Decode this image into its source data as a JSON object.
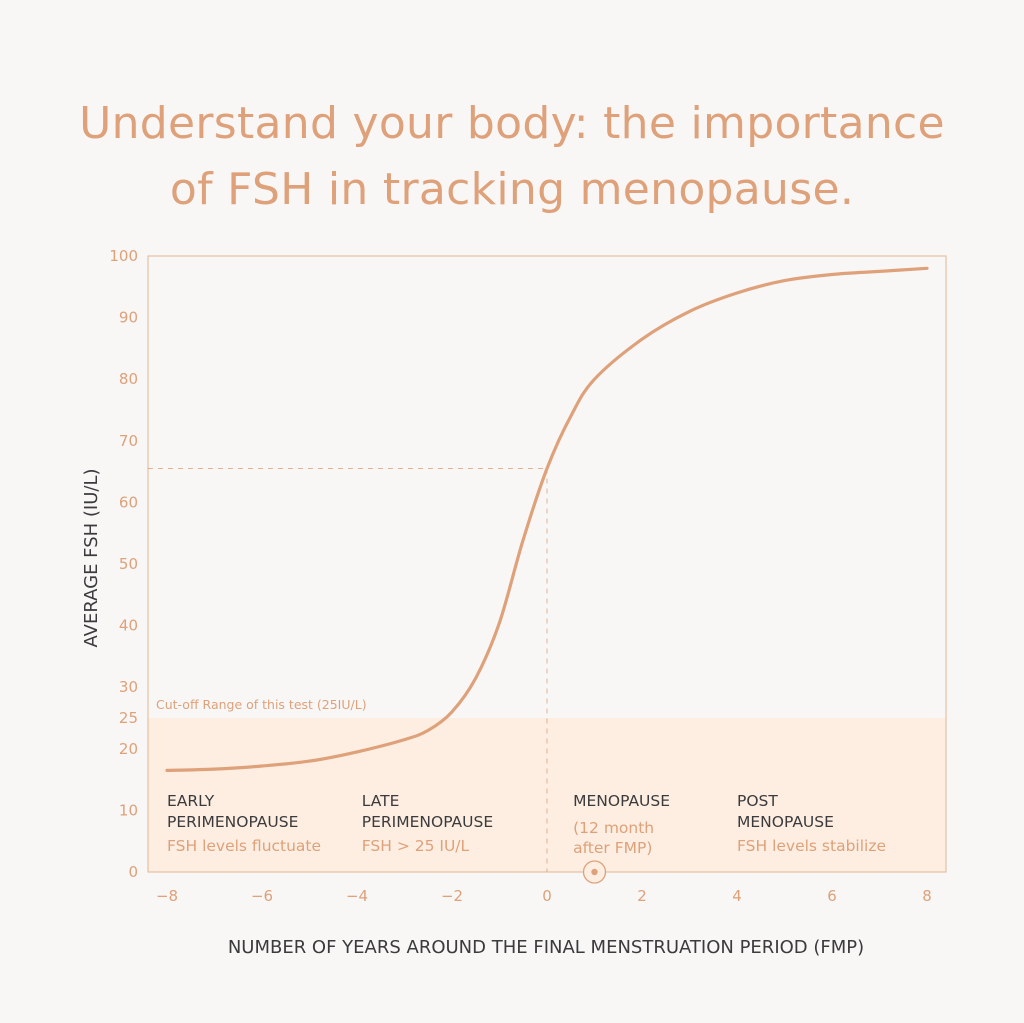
{
  "title_lines": [
    "Understand your body: the importance",
    "of FSH in tracking menopause."
  ],
  "chart_data": {
    "type": "line",
    "xlabel": "NUMBER OF YEARS AROUND THE FINAL MENSTRUATION PERIOD (FMP)",
    "ylabel": "AVERAGE FSH (IU/L)",
    "xlim": [
      -8.4,
      8.4
    ],
    "ylim": [
      0,
      100
    ],
    "x_ticks": [
      -8,
      -6,
      -4,
      -2,
      0,
      2,
      4,
      6,
      8
    ],
    "x_tick_labels": [
      "-8",
      "-6",
      "-4",
      "-2",
      "0",
      "2",
      "4",
      "6",
      "8"
    ],
    "y_ticks": [
      0,
      10,
      20,
      25,
      30,
      40,
      50,
      60,
      70,
      80,
      90,
      100
    ],
    "y_tick_labels": [
      "0",
      "10",
      "20",
      "25",
      "30",
      "40",
      "50",
      "60",
      "70",
      "80",
      "90",
      "100"
    ],
    "grid": false,
    "series": [
      {
        "x": [
          -8,
          -7,
          -6,
          -5,
          -4,
          -3,
          -2.5,
          -2,
          -1.5,
          -1,
          -0.5,
          0,
          0.5,
          1,
          2,
          3,
          4,
          5,
          6,
          7,
          8
        ],
        "y": [
          16.5,
          16.7,
          17.2,
          18.0,
          19.5,
          21.5,
          23.0,
          26.0,
          31.5,
          40.5,
          54.0,
          65.5,
          74.0,
          80.0,
          86.5,
          91.0,
          94.0,
          96.0,
          97.0,
          97.5,
          98.0
        ]
      }
    ],
    "cutoff": {
      "value": 25,
      "label": "Cut-off Range of this test (25IU/L)"
    },
    "reference_point": {
      "x": 0,
      "y": 65.5
    },
    "marker_x": 1,
    "phases": [
      {
        "x": -8,
        "name_lines": [
          "EARLY",
          "PERIMENOPAUSE"
        ],
        "note_lines": [
          "FSH levels fluctuate"
        ]
      },
      {
        "x": -3.9,
        "name_lines": [
          "LATE",
          "PERIMENOPAUSE"
        ],
        "note_lines": [
          "FSH > 25 IU/L"
        ]
      },
      {
        "x": 0.55,
        "name_lines": [
          "MENOPAUSE"
        ],
        "note_lines": [
          "(12 month",
          "after FMP)"
        ]
      },
      {
        "x": 4.0,
        "name_lines": [
          "POST",
          "MENOPAUSE"
        ],
        "note_lines": [
          "FSH levels stabilize"
        ]
      }
    ],
    "colors": {
      "accent": "#dea17a",
      "shade": "#fdeee1",
      "frame": "#e6c0a4",
      "dark": "#3b3b3d"
    }
  }
}
